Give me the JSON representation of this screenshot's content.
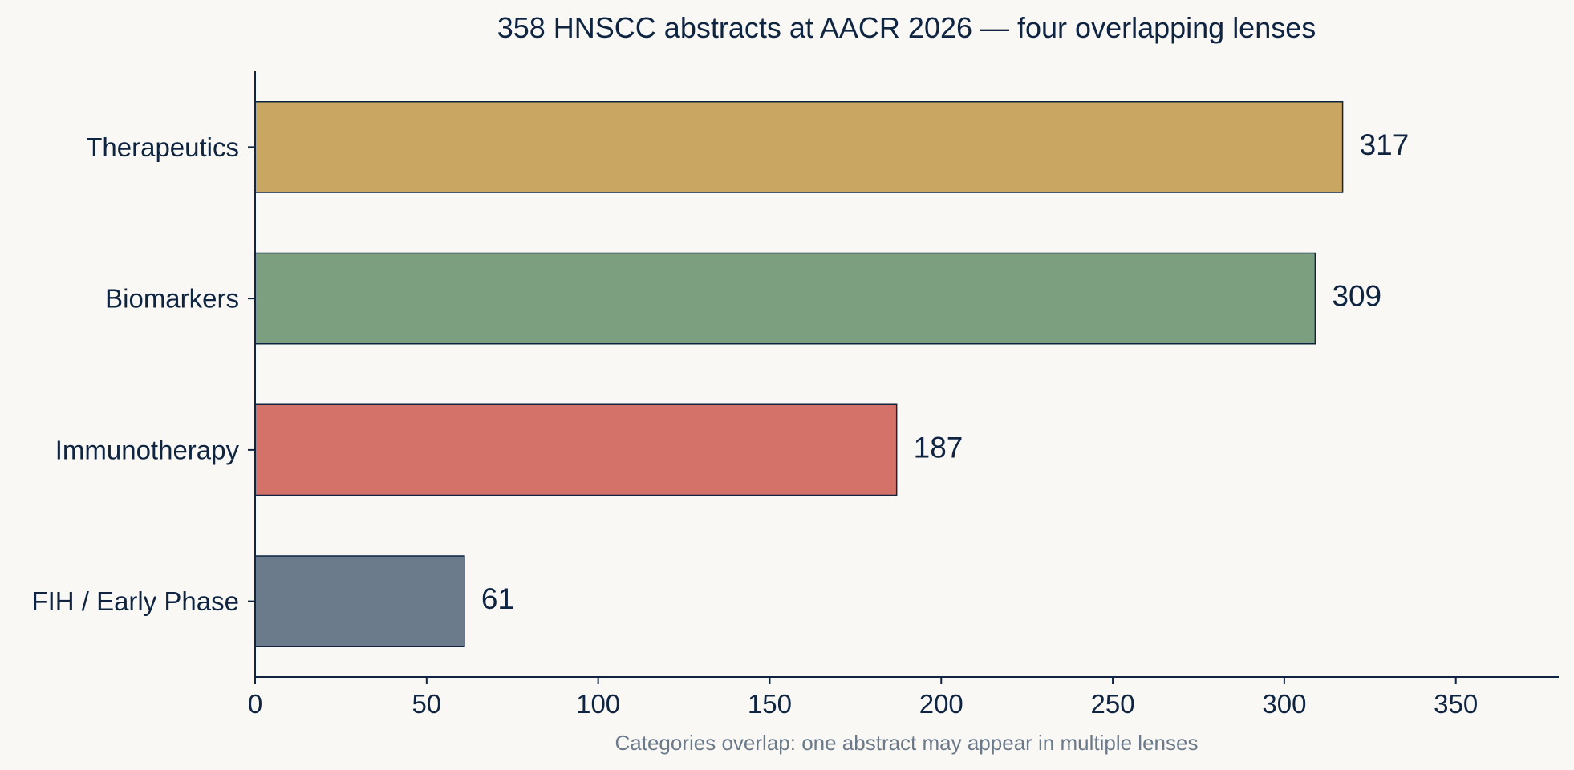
{
  "chart_data": {
    "type": "bar",
    "orientation": "horizontal",
    "title": "358 HNSCC abstracts at AACR 2026 — four overlapping lenses",
    "xlabel": "Categories overlap: one abstract may appear in multiple lenses",
    "ylabel": "",
    "categories": [
      "Therapeutics",
      "Biomarkers",
      "Immunotherapy",
      "FIH / Early Phase"
    ],
    "values": [
      317,
      309,
      187,
      61
    ],
    "value_labels": [
      "317",
      "309",
      "187",
      "61"
    ],
    "colors": [
      "#c9a762",
      "#7c9f7f",
      "#d4726a",
      "#6c7b8b"
    ],
    "xlim": [
      0,
      380
    ],
    "xticks": [
      0,
      50,
      100,
      150,
      200,
      250,
      300,
      350
    ],
    "xtick_labels": [
      "0",
      "50",
      "100",
      "150",
      "200",
      "250",
      "300",
      "350"
    ],
    "grid": false,
    "legend": "none"
  }
}
